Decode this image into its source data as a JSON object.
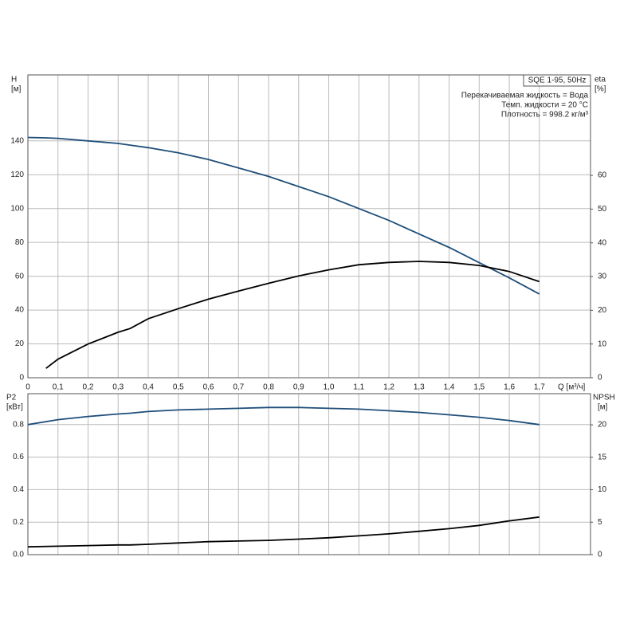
{
  "info": {
    "title": "SQE 1-95, 50Hz",
    "lines": [
      "Перекачиваемая жидкость = Вода",
      "Темп. жидкости = 20 °C",
      "Плотность = 998.2 кг/м³"
    ]
  },
  "chart_data": [
    {
      "type": "line",
      "y_label": "H",
      "y_unit": "[м]",
      "y2_label": "eta",
      "y2_unit": "[%]",
      "x_label": "Q [м³/ч]",
      "x": [
        0,
        0.06,
        0.1,
        0.2,
        0.3,
        0.34,
        0.4,
        0.5,
        0.6,
        0.7,
        0.8,
        0.9,
        1.0,
        1.1,
        1.2,
        1.3,
        1.4,
        1.5,
        1.6,
        1.7
      ],
      "xlim": [
        0,
        1.87
      ],
      "xticks": [
        0,
        {
          "value": 0.1,
          "label": "0,1"
        },
        {
          "value": 0.2,
          "label": "0,2"
        },
        {
          "value": 0.3,
          "label": "0,3"
        },
        {
          "value": 0.4,
          "label": "0,4"
        },
        {
          "value": 0.5,
          "label": "0,5"
        },
        {
          "value": 0.6,
          "label": "0,6"
        },
        {
          "value": 0.7,
          "label": "0,7"
        },
        {
          "value": 0.8,
          "label": "0,8"
        },
        {
          "value": 0.9,
          "label": "0,9"
        },
        {
          "value": 1.0,
          "label": "1,0"
        },
        {
          "value": 1.1,
          "label": "1,1"
        },
        {
          "value": 1.2,
          "label": "1,2"
        },
        {
          "value": 1.3,
          "label": "1,3"
        },
        {
          "value": 1.4,
          "label": "1,4"
        },
        {
          "value": 1.5,
          "label": "1,5"
        },
        {
          "value": 1.6,
          "label": "1,6"
        },
        {
          "value": 1.7,
          "label": "1,7"
        }
      ],
      "ylim": [
        0,
        179
      ],
      "yticks": [
        0,
        20,
        40,
        60,
        80,
        100,
        120,
        140
      ],
      "y2lim": [
        0,
        89.8
      ],
      "y2ticks": [
        0,
        10,
        20,
        30,
        40,
        50,
        60
      ],
      "grid": true,
      "series": [
        {
          "name": "H",
          "color": "#1f4e79",
          "values": [
            142,
            141.8,
            141.5,
            140,
            138.5,
            137.5,
            136,
            133,
            129,
            124,
            119,
            113,
            107,
            100,
            93,
            85,
            77,
            68,
            59,
            49.5
          ]
        },
        {
          "name": "eta",
          "color": "#000000",
          "axis": "y2",
          "values": [
            null,
            2.8,
            5.5,
            10,
            13.5,
            14.6,
            17.5,
            20.5,
            23.3,
            25.7,
            28,
            30.2,
            32,
            33.5,
            34.2,
            34.5,
            34.2,
            33.3,
            31.5,
            28.5
          ]
        }
      ]
    },
    {
      "type": "line",
      "y_label": "P2",
      "y_unit": "[кВт]",
      "y2_label": "NPSH",
      "y2_unit": "[м]",
      "x": [
        0,
        0.1,
        0.2,
        0.3,
        0.34,
        0.4,
        0.5,
        0.6,
        0.7,
        0.8,
        0.9,
        1.0,
        1.1,
        1.2,
        1.3,
        1.4,
        1.5,
        1.6,
        1.7
      ],
      "xlim": [
        0,
        1.87
      ],
      "ylim": [
        0,
        0.99
      ],
      "yticks": [
        {
          "value": 0,
          "label": "0.0"
        },
        0.2,
        0.4,
        0.6,
        0.8
      ],
      "y2lim": [
        0,
        24.8
      ],
      "y2ticks": [
        0,
        5,
        10,
        15,
        20
      ],
      "grid": true,
      "series": [
        {
          "name": "P2",
          "color": "#1f4e79",
          "values": [
            0.8,
            0.83,
            0.85,
            0.865,
            0.87,
            0.88,
            0.89,
            0.895,
            0.9,
            0.905,
            0.905,
            0.9,
            0.895,
            0.885,
            0.875,
            0.86,
            0.845,
            0.825,
            0.8
          ]
        },
        {
          "name": "NPSH",
          "color": "#000000",
          "axis": "y2",
          "values": [
            1.2,
            1.3,
            1.4,
            1.5,
            1.5,
            1.6,
            1.8,
            2.0,
            2.1,
            2.2,
            2.4,
            2.6,
            2.9,
            3.2,
            3.6,
            4.0,
            4.5,
            5.2,
            5.8
          ]
        }
      ]
    }
  ]
}
